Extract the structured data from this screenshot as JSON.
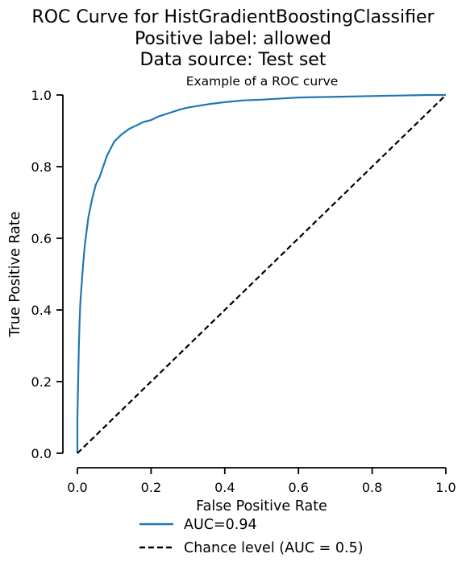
{
  "chart_data": {
    "type": "line",
    "title_lines": [
      "ROC Curve for HistGradientBoostingClassifier",
      "Positive label: allowed",
      "Data source: Test set"
    ],
    "subtitle": "Example of a ROC curve",
    "xlabel": "False Positive Rate",
    "ylabel": "True Positive Rate",
    "xlim": [
      0,
      1
    ],
    "ylim": [
      0,
      1
    ],
    "xticks": [
      "0.0",
      "0.2",
      "0.4",
      "0.6",
      "0.8",
      "1.0"
    ],
    "yticks": [
      "0.0",
      "0.2",
      "0.4",
      "0.6",
      "0.8",
      "1.0"
    ],
    "grid": false,
    "legend_position": "bottom-center",
    "series": [
      {
        "name": "AUC=0.94",
        "color": "#1f77b4",
        "style": "solid",
        "x": [
          0.0,
          0.0,
          0.002,
          0.004,
          0.006,
          0.008,
          0.01,
          0.015,
          0.02,
          0.025,
          0.03,
          0.04,
          0.05,
          0.06,
          0.07,
          0.08,
          0.09,
          0.1,
          0.12,
          0.14,
          0.16,
          0.18,
          0.2,
          0.22,
          0.25,
          0.28,
          0.3,
          0.33,
          0.36,
          0.4,
          0.45,
          0.5,
          0.55,
          0.6,
          0.7,
          0.8,
          0.9,
          0.95,
          1.0
        ],
        "y": [
          0.0,
          0.1,
          0.2,
          0.3,
          0.37,
          0.42,
          0.45,
          0.52,
          0.58,
          0.62,
          0.66,
          0.71,
          0.75,
          0.77,
          0.8,
          0.83,
          0.85,
          0.87,
          0.89,
          0.905,
          0.915,
          0.925,
          0.93,
          0.94,
          0.95,
          0.96,
          0.965,
          0.97,
          0.975,
          0.98,
          0.985,
          0.987,
          0.99,
          0.993,
          0.995,
          0.997,
          0.999,
          1.0,
          1.0
        ]
      },
      {
        "name": "Chance level (AUC = 0.5)",
        "color": "#000000",
        "style": "dashed",
        "x": [
          0,
          1
        ],
        "y": [
          0,
          1
        ]
      }
    ]
  }
}
